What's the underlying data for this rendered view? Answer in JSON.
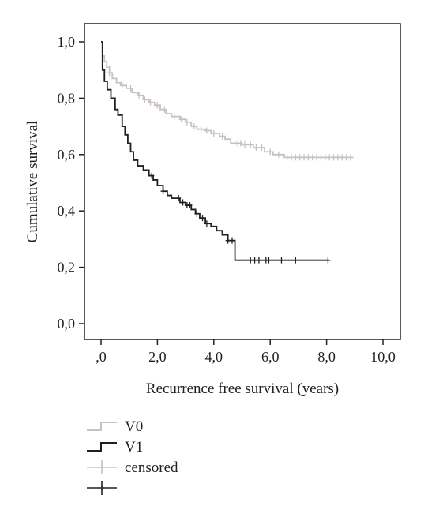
{
  "chart_data": {
    "type": "line",
    "subtype": "kaplan-meier step",
    "xlabel": "Recurrence free survival (years)",
    "ylabel": "Cumulative survival",
    "xlim": [
      0,
      10
    ],
    "ylim": [
      0,
      1
    ],
    "x_ticks": [
      ",0",
      "2,0",
      "4,0",
      "6,0",
      "8,0",
      "10,0"
    ],
    "y_ticks": [
      "0,0",
      "0,2",
      "0,4",
      "0,6",
      "0,8",
      "1,0"
    ],
    "grid": false,
    "legend_position": "bottom-left",
    "series": [
      {
        "name": "V0",
        "color": "#c9c0c0",
        "steps": [
          [
            0,
            1.0
          ],
          [
            0.05,
            0.95
          ],
          [
            0.12,
            0.93
          ],
          [
            0.2,
            0.91
          ],
          [
            0.3,
            0.89
          ],
          [
            0.4,
            0.87
          ],
          [
            0.55,
            0.855
          ],
          [
            0.7,
            0.845
          ],
          [
            0.9,
            0.835
          ],
          [
            1.1,
            0.82
          ],
          [
            1.3,
            0.81
          ],
          [
            1.5,
            0.795
          ],
          [
            1.7,
            0.785
          ],
          [
            1.9,
            0.775
          ],
          [
            2.1,
            0.76
          ],
          [
            2.3,
            0.745
          ],
          [
            2.5,
            0.735
          ],
          [
            2.8,
            0.725
          ],
          [
            3.0,
            0.715
          ],
          [
            3.2,
            0.7
          ],
          [
            3.4,
            0.69
          ],
          [
            3.7,
            0.685
          ],
          [
            3.9,
            0.675
          ],
          [
            4.2,
            0.665
          ],
          [
            4.4,
            0.655
          ],
          [
            4.6,
            0.64
          ],
          [
            5.0,
            0.635
          ],
          [
            5.4,
            0.625
          ],
          [
            5.8,
            0.61
          ],
          [
            6.1,
            0.6
          ],
          [
            6.5,
            0.59
          ],
          [
            8.95,
            0.59
          ]
        ],
        "censored": [
          0.3,
          0.75,
          1.05,
          1.35,
          1.55,
          1.75,
          2.0,
          2.25,
          2.6,
          2.85,
          3.05,
          3.3,
          3.55,
          3.75,
          4.0,
          4.3,
          4.75,
          4.85,
          4.95,
          5.1,
          5.3,
          5.5,
          5.7,
          6.0,
          6.3,
          6.6,
          6.75,
          6.9,
          7.05,
          7.2,
          7.35,
          7.5,
          7.65,
          7.8,
          7.95,
          8.1,
          8.25,
          8.4,
          8.55,
          8.7,
          8.85
        ]
      },
      {
        "name": "V1",
        "color": "#231f20",
        "steps": [
          [
            0,
            1.0
          ],
          [
            0.05,
            0.9
          ],
          [
            0.12,
            0.86
          ],
          [
            0.22,
            0.83
          ],
          [
            0.35,
            0.8
          ],
          [
            0.5,
            0.76
          ],
          [
            0.6,
            0.74
          ],
          [
            0.75,
            0.7
          ],
          [
            0.85,
            0.67
          ],
          [
            0.95,
            0.64
          ],
          [
            1.05,
            0.61
          ],
          [
            1.15,
            0.58
          ],
          [
            1.3,
            0.56
          ],
          [
            1.5,
            0.545
          ],
          [
            1.7,
            0.525
          ],
          [
            1.85,
            0.51
          ],
          [
            2.0,
            0.49
          ],
          [
            2.2,
            0.47
          ],
          [
            2.35,
            0.455
          ],
          [
            2.5,
            0.445
          ],
          [
            2.8,
            0.43
          ],
          [
            3.0,
            0.42
          ],
          [
            3.2,
            0.405
          ],
          [
            3.35,
            0.39
          ],
          [
            3.5,
            0.375
          ],
          [
            3.7,
            0.355
          ],
          [
            3.9,
            0.345
          ],
          [
            4.1,
            0.33
          ],
          [
            4.3,
            0.315
          ],
          [
            4.5,
            0.295
          ],
          [
            4.75,
            0.225
          ],
          [
            8.1,
            0.225
          ]
        ],
        "censored": [
          1.8,
          2.2,
          2.75,
          2.9,
          3.05,
          3.15,
          3.4,
          3.6,
          3.75,
          4.5,
          4.65,
          5.3,
          5.45,
          5.6,
          5.85,
          5.95,
          6.4,
          6.9,
          8.05
        ]
      }
    ],
    "legend": [
      {
        "label": "V0",
        "kind": "step",
        "color": "#c9c0c0"
      },
      {
        "label": "V1",
        "kind": "step",
        "color": "#231f20"
      },
      {
        "label": "censored",
        "kind": "cross",
        "color": "#c9c0c0"
      },
      {
        "label": "",
        "kind": "cross",
        "color": "#231f20"
      }
    ]
  }
}
